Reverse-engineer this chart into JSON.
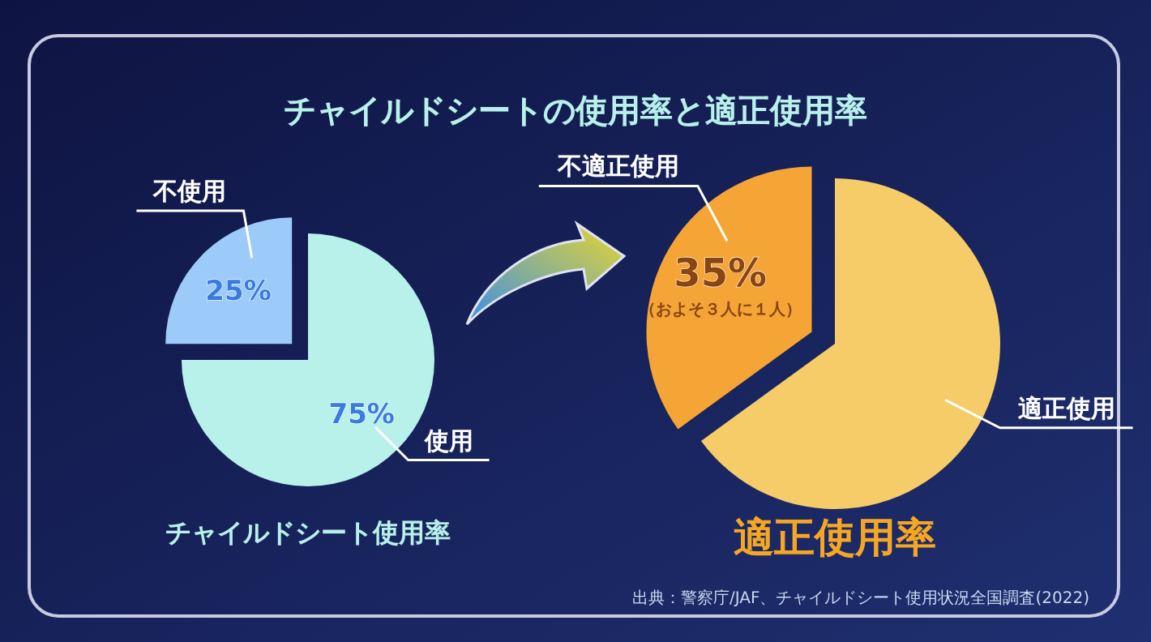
{
  "chart_data": [
    {
      "type": "pie",
      "title": "チャイルドシート使用率",
      "categories": [
        "使用",
        "不使用"
      ],
      "values": [
        75,
        25
      ],
      "colors": [
        "#b8f0ea",
        "#9ccbfa"
      ],
      "value_labels": [
        "75%",
        "25%"
      ],
      "legend": false,
      "annotations": [
        "チャイルドシートの使用率と適正使用率"
      ]
    },
    {
      "type": "pie",
      "title": "適正使用率",
      "categories": [
        "適正使用",
        "不適正使用"
      ],
      "values": [
        65,
        35
      ],
      "colors": [
        "#f5cc68",
        "#f4a535"
      ],
      "value_labels": [
        null,
        "35%"
      ],
      "legend": false,
      "annotations": [
        "（およそ３人に１人）",
        "出典：警察庁/JAF、チャイルドシート使用状況全国調査(2022)"
      ]
    }
  ]
}
